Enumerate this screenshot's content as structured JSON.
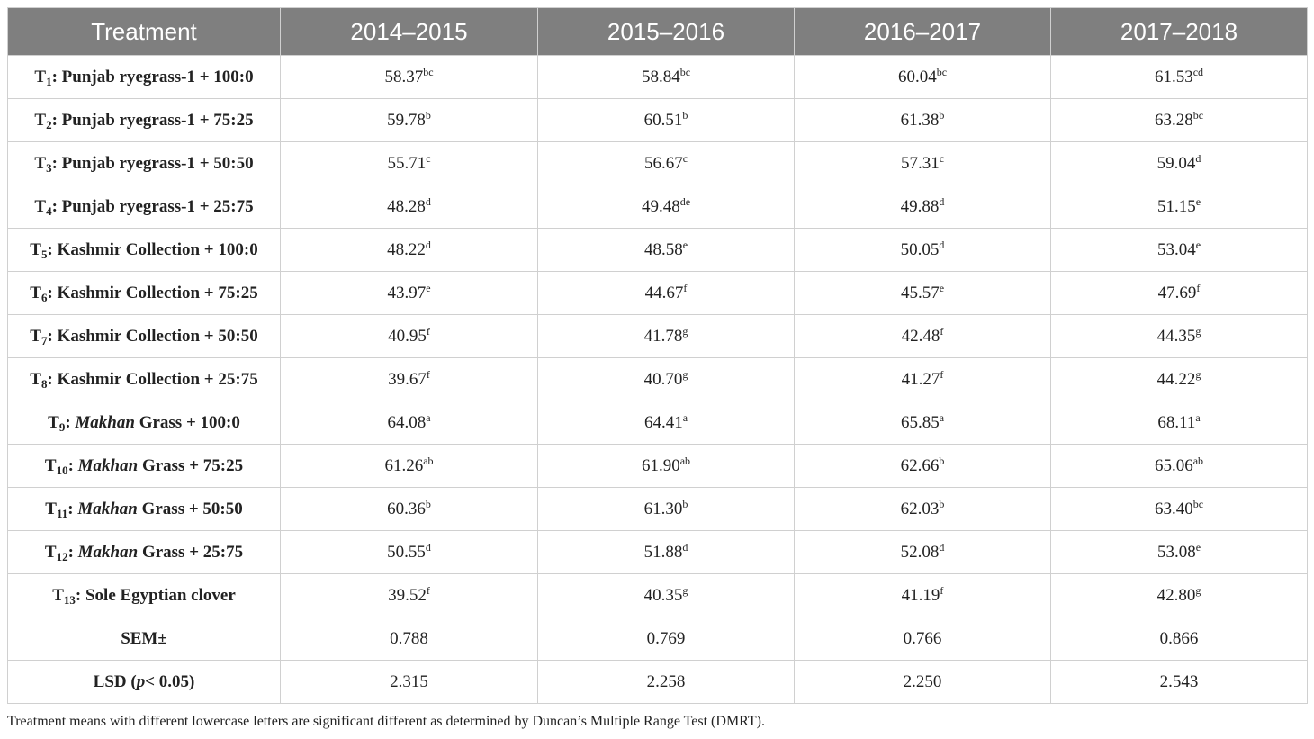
{
  "table": {
    "header": [
      "Treatment",
      "2014–2015",
      "2015–2016",
      "2016–2017",
      "2017–2018"
    ],
    "rows": [
      {
        "treatment": {
          "code": "T",
          "sub": "1",
          "post": ": Punjab ryegrass-1 + 100:0"
        },
        "cells": [
          {
            "value": "58.37",
            "sup": "bc"
          },
          {
            "value": "58.84",
            "sup": "bc"
          },
          {
            "value": "60.04",
            "sup": "bc"
          },
          {
            "value": "61.53",
            "sup": "cd"
          }
        ]
      },
      {
        "treatment": {
          "code": "T",
          "sub": "2",
          "post": ": Punjab ryegrass-1 + 75:25"
        },
        "cells": [
          {
            "value": "59.78",
            "sup": "b"
          },
          {
            "value": "60.51",
            "sup": "b"
          },
          {
            "value": "61.38",
            "sup": "b"
          },
          {
            "value": "63.28",
            "sup": "bc"
          }
        ]
      },
      {
        "treatment": {
          "code": "T",
          "sub": "3",
          "post": ": Punjab ryegrass-1 + 50:50"
        },
        "cells": [
          {
            "value": "55.71",
            "sup": "c"
          },
          {
            "value": "56.67",
            "sup": "c"
          },
          {
            "value": "57.31",
            "sup": "c"
          },
          {
            "value": "59.04",
            "sup": "d"
          }
        ]
      },
      {
        "treatment": {
          "code": "T",
          "sub": "4",
          "post": ": Punjab ryegrass-1 + 25:75"
        },
        "cells": [
          {
            "value": "48.28",
            "sup": "d"
          },
          {
            "value": "49.48",
            "sup": "de"
          },
          {
            "value": "49.88",
            "sup": "d"
          },
          {
            "value": "51.15",
            "sup": "e"
          }
        ]
      },
      {
        "treatment": {
          "code": "T",
          "sub": "5",
          "post": ": Kashmir Collection + 100:0"
        },
        "cells": [
          {
            "value": "48.22",
            "sup": "d"
          },
          {
            "value": "48.58",
            "sup": "e"
          },
          {
            "value": "50.05",
            "sup": "d"
          },
          {
            "value": "53.04",
            "sup": "e"
          }
        ]
      },
      {
        "treatment": {
          "code": "T",
          "sub": "6",
          "post": ": Kashmir Collection + 75:25"
        },
        "cells": [
          {
            "value": "43.97",
            "sup": "e"
          },
          {
            "value": "44.67",
            "sup": "f"
          },
          {
            "value": "45.57",
            "sup": "e"
          },
          {
            "value": "47.69",
            "sup": "f"
          }
        ]
      },
      {
        "treatment": {
          "code": "T",
          "sub": "7",
          "post": ": Kashmir Collection + 50:50"
        },
        "cells": [
          {
            "value": "40.95",
            "sup": "f"
          },
          {
            "value": "41.78",
            "sup": "g"
          },
          {
            "value": "42.48",
            "sup": "f"
          },
          {
            "value": "44.35",
            "sup": "g"
          }
        ]
      },
      {
        "treatment": {
          "code": "T",
          "sub": "8",
          "post": ": Kashmir Collection + 25:75"
        },
        "cells": [
          {
            "value": "39.67",
            "sup": "f"
          },
          {
            "value": "40.70",
            "sup": "g"
          },
          {
            "value": "41.27",
            "sup": "f"
          },
          {
            "value": "44.22",
            "sup": "g"
          }
        ]
      },
      {
        "treatment": {
          "code": "T",
          "sub": "9",
          "pre": ": ",
          "italic": "Makhan",
          "post": " Grass + 100:0"
        },
        "cells": [
          {
            "value": "64.08",
            "sup": "a"
          },
          {
            "value": "64.41",
            "sup": "a"
          },
          {
            "value": "65.85",
            "sup": "a"
          },
          {
            "value": "68.11",
            "sup": "a"
          }
        ]
      },
      {
        "treatment": {
          "code": "T",
          "sub": "10",
          "pre": ": ",
          "italic": "Makhan",
          "post": " Grass + 75:25"
        },
        "cells": [
          {
            "value": "61.26",
            "sup": "ab"
          },
          {
            "value": "61.90",
            "sup": "ab"
          },
          {
            "value": "62.66",
            "sup": "b"
          },
          {
            "value": "65.06",
            "sup": "ab"
          }
        ]
      },
      {
        "treatment": {
          "code": "T",
          "sub": "11",
          "pre": ": ",
          "italic": "Makhan",
          "post": " Grass + 50:50"
        },
        "cells": [
          {
            "value": "60.36",
            "sup": "b"
          },
          {
            "value": "61.30",
            "sup": "b"
          },
          {
            "value": "62.03",
            "sup": "b"
          },
          {
            "value": "63.40",
            "sup": "bc"
          }
        ]
      },
      {
        "treatment": {
          "code": "T",
          "sub": "12",
          "pre": ": ",
          "italic": "Makhan",
          "post": " Grass + 25:75"
        },
        "cells": [
          {
            "value": "50.55",
            "sup": "d"
          },
          {
            "value": "51.88",
            "sup": "d"
          },
          {
            "value": "52.08",
            "sup": "d"
          },
          {
            "value": "53.08",
            "sup": "e"
          }
        ]
      },
      {
        "treatment": {
          "code": "T",
          "sub": "13",
          "post": ": Sole Egyptian clover"
        },
        "cells": [
          {
            "value": "39.52",
            "sup": "f"
          },
          {
            "value": "40.35",
            "sup": "g"
          },
          {
            "value": "41.19",
            "sup": "f"
          },
          {
            "value": "42.80",
            "sup": "g"
          }
        ]
      },
      {
        "treatment": {
          "post": "SEM±"
        },
        "cells": [
          {
            "value": "0.788"
          },
          {
            "value": "0.769"
          },
          {
            "value": "0.766"
          },
          {
            "value": "0.866"
          }
        ]
      },
      {
        "treatment": {
          "pre": "LSD (",
          "italic": "p",
          "post": "< 0.05)"
        },
        "cells": [
          {
            "value": "2.315"
          },
          {
            "value": "2.258"
          },
          {
            "value": "2.250"
          },
          {
            "value": "2.543"
          }
        ]
      }
    ],
    "footnote": "Treatment means with different lowercase letters are significant different as determined by Duncan’s Multiple Range Test (DMRT)."
  }
}
